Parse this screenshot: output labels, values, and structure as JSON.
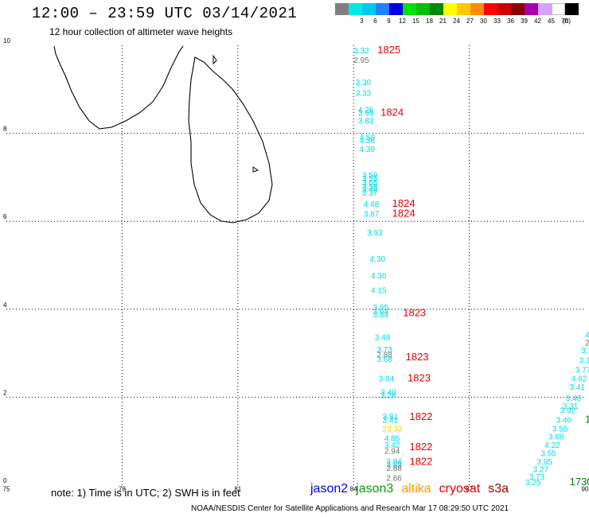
{
  "header": {
    "title": "12:00 – 23:59 UTC 03/14/2021",
    "subtitle": "12 hour collection of altimeter wave heights"
  },
  "scale": {
    "unit": "(ft)",
    "swatches": [
      {
        "label": "",
        "color": "#7f7f7f"
      },
      {
        "label": "3",
        "color": "#00e8e8"
      },
      {
        "label": "6",
        "color": "#00c8f0"
      },
      {
        "label": "9",
        "color": "#2080ff"
      },
      {
        "label": "12",
        "color": "#0000e0"
      },
      {
        "label": "15",
        "color": "#00e000"
      },
      {
        "label": "18",
        "color": "#00c000"
      },
      {
        "label": "21",
        "color": "#008800"
      },
      {
        "label": "24",
        "color": "#ffff00"
      },
      {
        "label": "27",
        "color": "#ffc800"
      },
      {
        "label": "30",
        "color": "#ff8c00"
      },
      {
        "label": "33",
        "color": "#ff0000"
      },
      {
        "label": "36",
        "color": "#cc0000"
      },
      {
        "label": "39",
        "color": "#880000"
      },
      {
        "label": "42",
        "color": "#aa00aa"
      },
      {
        "label": "45",
        "color": "#d8a0ff"
      },
      {
        "label": "70",
        "color": "#ffffff"
      },
      {
        "label": "",
        "color": "#000000"
      }
    ]
  },
  "map": {
    "lon_ticks": [
      "75",
      "78",
      "81",
      "84",
      "87",
      "90"
    ],
    "lat_ticks": [
      "0",
      "2",
      "4",
      "6",
      "8",
      "10"
    ],
    "lon_range": [
      75,
      90
    ],
    "lat_range": [
      0,
      10
    ]
  },
  "colors": {
    "cyan": "#00d8e0",
    "gray": "#707070",
    "yellow": "#e8d800",
    "red": "#e00000",
    "green": "#008000"
  },
  "track1": [
    {
      "v": "3.32",
      "c": "cyan",
      "lon": 84.0,
      "lat": 9.82
    },
    {
      "v": "2.95",
      "c": "gray",
      "lon": 84.0,
      "lat": 9.6
    },
    {
      "v": "3.30",
      "c": "cyan",
      "lon": 84.05,
      "lat": 9.1
    },
    {
      "v": "3.33",
      "c": "cyan",
      "lon": 84.05,
      "lat": 8.85
    },
    {
      "v": "4.26",
      "c": "cyan",
      "lon": 84.12,
      "lat": 8.47
    },
    {
      "v": "3.99",
      "c": "cyan",
      "lon": 84.12,
      "lat": 8.4
    },
    {
      "v": "3.83",
      "c": "cyan",
      "lon": 84.12,
      "lat": 8.23
    },
    {
      "v": "4.50",
      "c": "cyan",
      "lon": 84.15,
      "lat": 7.85
    },
    {
      "v": "4.36",
      "c": "cyan",
      "lon": 84.15,
      "lat": 7.78
    },
    {
      "v": "4.30",
      "c": "cyan",
      "lon": 84.15,
      "lat": 7.58
    },
    {
      "v": "3.59",
      "c": "cyan",
      "lon": 84.22,
      "lat": 6.99
    },
    {
      "v": "3.55",
      "c": "cyan",
      "lon": 84.22,
      "lat": 6.91
    },
    {
      "v": "3.65",
      "c": "cyan",
      "lon": 84.22,
      "lat": 6.82
    },
    {
      "v": "3.58",
      "c": "cyan",
      "lon": 84.22,
      "lat": 6.73
    },
    {
      "v": "3.49",
      "c": "cyan",
      "lon": 84.22,
      "lat": 6.66
    },
    {
      "v": "3.37",
      "c": "cyan",
      "lon": 84.22,
      "lat": 6.58
    },
    {
      "v": "4.48",
      "c": "cyan",
      "lon": 84.26,
      "lat": 6.33
    },
    {
      "v": "3.87",
      "c": "cyan",
      "lon": 84.26,
      "lat": 6.1
    },
    {
      "v": "3.93",
      "c": "cyan",
      "lon": 84.35,
      "lat": 5.68
    },
    {
      "v": "4.30",
      "c": "cyan",
      "lon": 84.42,
      "lat": 5.08
    },
    {
      "v": "4.36",
      "c": "cyan",
      "lon": 84.45,
      "lat": 4.7
    },
    {
      "v": "4.15",
      "c": "cyan",
      "lon": 84.45,
      "lat": 4.37
    },
    {
      "v": "3.95",
      "c": "cyan",
      "lon": 84.5,
      "lat": 3.98
    },
    {
      "v": "3.94",
      "c": "cyan",
      "lon": 84.5,
      "lat": 3.88
    },
    {
      "v": "3.54",
      "c": "cyan",
      "lon": 84.5,
      "lat": 3.82
    },
    {
      "v": "3.48",
      "c": "cyan",
      "lon": 84.55,
      "lat": 3.3
    },
    {
      "v": "3.73",
      "c": "cyan",
      "lon": 84.6,
      "lat": 3.02
    },
    {
      "v": "2.88",
      "c": "gray",
      "lon": 84.6,
      "lat": 2.9
    },
    {
      "v": "3.68",
      "c": "cyan",
      "lon": 84.6,
      "lat": 2.8
    },
    {
      "v": "3.04",
      "c": "cyan",
      "lon": 84.65,
      "lat": 2.36
    },
    {
      "v": "3.40",
      "c": "cyan",
      "lon": 84.7,
      "lat": 2.05
    },
    {
      "v": "3.28",
      "c": "cyan",
      "lon": 84.7,
      "lat": 1.98
    },
    {
      "v": "3.81",
      "c": "cyan",
      "lon": 84.75,
      "lat": 1.5
    },
    {
      "v": "3.41",
      "c": "cyan",
      "lon": 84.75,
      "lat": 1.42
    },
    {
      "v": "23.32",
      "c": "yellow",
      "lon": 84.75,
      "lat": 1.22
    },
    {
      "v": "4.85",
      "c": "cyan",
      "lon": 84.8,
      "lat": 1.0
    },
    {
      "v": "3.42",
      "c": "cyan",
      "lon": 84.8,
      "lat": 0.85
    },
    {
      "v": "2.94",
      "c": "gray",
      "lon": 84.8,
      "lat": 0.71
    },
    {
      "v": "3.84",
      "c": "cyan",
      "lon": 84.85,
      "lat": 0.48
    },
    {
      "v": "3.89",
      "c": "cyan",
      "lon": 84.85,
      "lat": 0.41
    },
    {
      "v": "2.88",
      "c": "gray",
      "lon": 84.85,
      "lat": 0.33
    },
    {
      "v": "2.66",
      "c": "gray",
      "lon": 84.85,
      "lat": 0.1
    }
  ],
  "times": [
    {
      "v": "1825",
      "c": "red",
      "lon": 84.62,
      "lat": 9.82
    },
    {
      "v": "1824",
      "c": "red",
      "lon": 84.7,
      "lat": 8.4
    },
    {
      "v": "1824",
      "c": "red",
      "lon": 85.0,
      "lat": 6.33
    },
    {
      "v": "1824",
      "c": "red",
      "lon": 85.0,
      "lat": 6.1
    },
    {
      "v": "1823",
      "c": "red",
      "lon": 85.28,
      "lat": 3.84
    },
    {
      "v": "1823",
      "c": "red",
      "lon": 85.35,
      "lat": 2.84
    },
    {
      "v": "1823",
      "c": "red",
      "lon": 85.4,
      "lat": 2.36
    },
    {
      "v": "1822",
      "c": "red",
      "lon": 85.45,
      "lat": 1.48
    },
    {
      "v": "1822",
      "c": "red",
      "lon": 85.45,
      "lat": 0.8
    },
    {
      "v": "1822",
      "c": "red",
      "lon": 85.45,
      "lat": 0.46
    },
    {
      "v": "1730",
      "c": "green",
      "lon": 89.6,
      "lat": 0.0
    },
    {
      "v": "1",
      "c": "green",
      "lon": 90.0,
      "lat": 1.42
    }
  ],
  "track2": [
    {
      "v": "4",
      "c": "cyan",
      "lon": 90.0,
      "lat": 3.35
    },
    {
      "v": "2",
      "c": "gray",
      "lon": 90.0,
      "lat": 3.17
    },
    {
      "v": "3.1",
      "c": "cyan",
      "lon": 89.9,
      "lat": 3.0
    },
    {
      "v": "3.1",
      "c": "cyan",
      "lon": 89.85,
      "lat": 2.78
    },
    {
      "v": "3.77",
      "c": "cyan",
      "lon": 89.75,
      "lat": 2.56
    },
    {
      "v": "4.62",
      "c": "cyan",
      "lon": 89.65,
      "lat": 2.36
    },
    {
      "v": "3.41",
      "c": "cyan",
      "lon": 89.6,
      "lat": 2.17
    },
    {
      "v": "3.48",
      "c": "cyan",
      "lon": 89.5,
      "lat": 1.92
    },
    {
      "v": "3.31",
      "c": "cyan",
      "lon": 89.42,
      "lat": 1.74
    },
    {
      "v": "3.92",
      "c": "cyan",
      "lon": 89.35,
      "lat": 1.64
    },
    {
      "v": "3.40",
      "c": "cyan",
      "lon": 89.25,
      "lat": 1.42
    },
    {
      "v": "3.55",
      "c": "cyan",
      "lon": 89.15,
      "lat": 1.22
    },
    {
      "v": "3.68",
      "c": "cyan",
      "lon": 89.05,
      "lat": 1.04
    },
    {
      "v": "4.22",
      "c": "cyan",
      "lon": 88.95,
      "lat": 0.85
    },
    {
      "v": "3.55",
      "c": "cyan",
      "lon": 88.85,
      "lat": 0.66
    },
    {
      "v": "3.95",
      "c": "cyan",
      "lon": 88.75,
      "lat": 0.47
    },
    {
      "v": "3.27",
      "c": "cyan",
      "lon": 88.65,
      "lat": 0.3
    },
    {
      "v": "3.73",
      "c": "cyan",
      "lon": 88.55,
      "lat": 0.13
    },
    {
      "v": "3.25",
      "c": "cyan",
      "lon": 88.45,
      "lat": 0.0
    }
  ],
  "footer": {
    "note": "note:  1) Time is in UTC; 2) SWH is in feet",
    "credit": "NOAA/NESDIS Center for Satellite Applications and Research    Mar 17 08:29:50 UTC 2021",
    "legend": [
      {
        "label": "jason2",
        "color": "#0000e0"
      },
      {
        "label": "jason3",
        "color": "#00a000"
      },
      {
        "label": "altika",
        "color": "#ff9900"
      },
      {
        "label": "cryosat",
        "color": "#e00000"
      },
      {
        "label": "s3a",
        "color": "#a00000"
      }
    ]
  }
}
